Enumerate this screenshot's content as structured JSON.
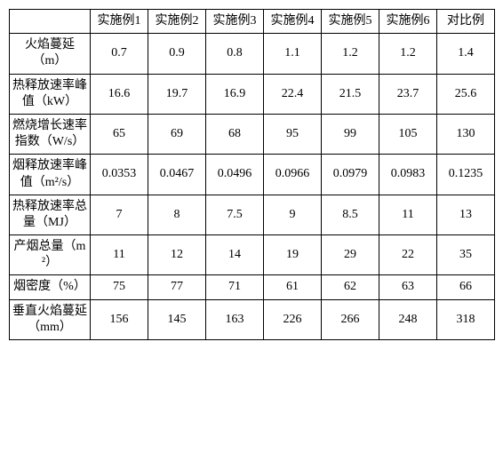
{
  "columns": [
    "实施例1",
    "实施例2",
    "实施例3",
    "实施例4",
    "实施例5",
    "实施例6",
    "对比例"
  ],
  "rows": [
    {
      "label": "火焰蔓延（m）",
      "values": [
        "0.7",
        "0.9",
        "0.8",
        "1.1",
        "1.2",
        "1.2",
        "1.4"
      ]
    },
    {
      "label": "热释放速率峰值（kW）",
      "values": [
        "16.6",
        "19.7",
        "16.9",
        "22.4",
        "21.5",
        "23.7",
        "25.6"
      ]
    },
    {
      "label": "燃烧增长速率指数（W/s）",
      "values": [
        "65",
        "69",
        "68",
        "95",
        "99",
        "105",
        "130"
      ]
    },
    {
      "label": "烟释放速率峰值（m²/s）",
      "values": [
        "0.0353",
        "0.0467",
        "0.0496",
        "0.0966",
        "0.0979",
        "0.0983",
        "0.1235"
      ]
    },
    {
      "label": "热释放速率总量（MJ）",
      "values": [
        "7",
        "8",
        "7.5",
        "9",
        "8.5",
        "11",
        "13"
      ]
    },
    {
      "label": "产烟总量（m²）",
      "values": [
        "11",
        "12",
        "14",
        "19",
        "29",
        "22",
        "35"
      ]
    },
    {
      "label": "烟密度（%）",
      "values": [
        "75",
        "77",
        "71",
        "61",
        "62",
        "63",
        "66"
      ]
    },
    {
      "label": "垂直火焰蔓延（mm）",
      "values": [
        "156",
        "145",
        "163",
        "226",
        "266",
        "248",
        "318"
      ]
    }
  ]
}
